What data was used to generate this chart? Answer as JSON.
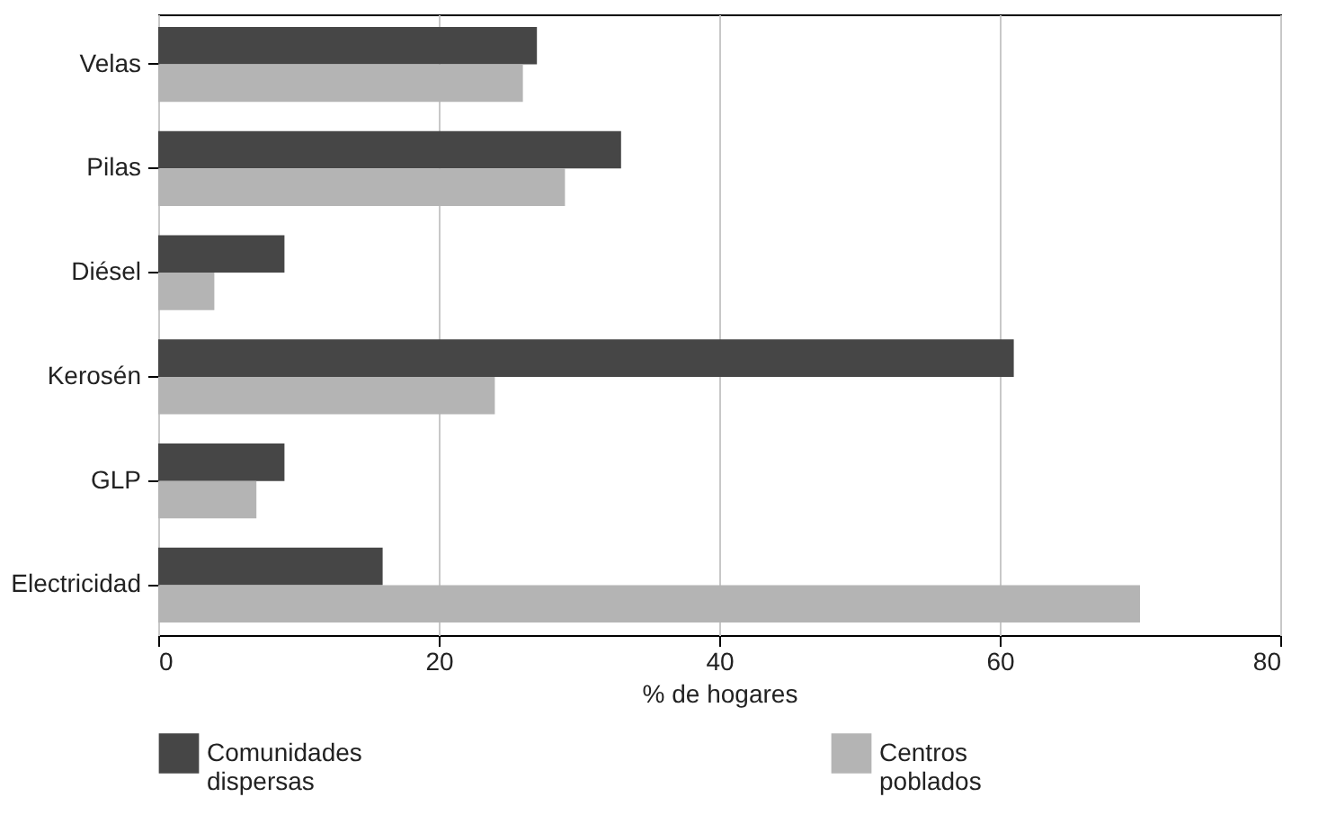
{
  "chart_data": {
    "type": "bar",
    "orientation": "horizontal",
    "xlabel": "% de hogares",
    "categories": [
      "Velas",
      "Pilas",
      "Diésel",
      "Kerosén",
      "GLP",
      "Electricidad"
    ],
    "series": [
      {
        "name": "Comunidades dispersas",
        "color": "#464646",
        "values": [
          27,
          33,
          9,
          61,
          9,
          16
        ]
      },
      {
        "name": "Centros poblados",
        "color": "#b4b4b4",
        "values": [
          26,
          29,
          4,
          24,
          7,
          70
        ]
      }
    ],
    "xlim": [
      0,
      80
    ],
    "xticks": [
      0,
      20,
      40,
      60,
      80
    ],
    "grid": "x",
    "legend": "bottom"
  }
}
